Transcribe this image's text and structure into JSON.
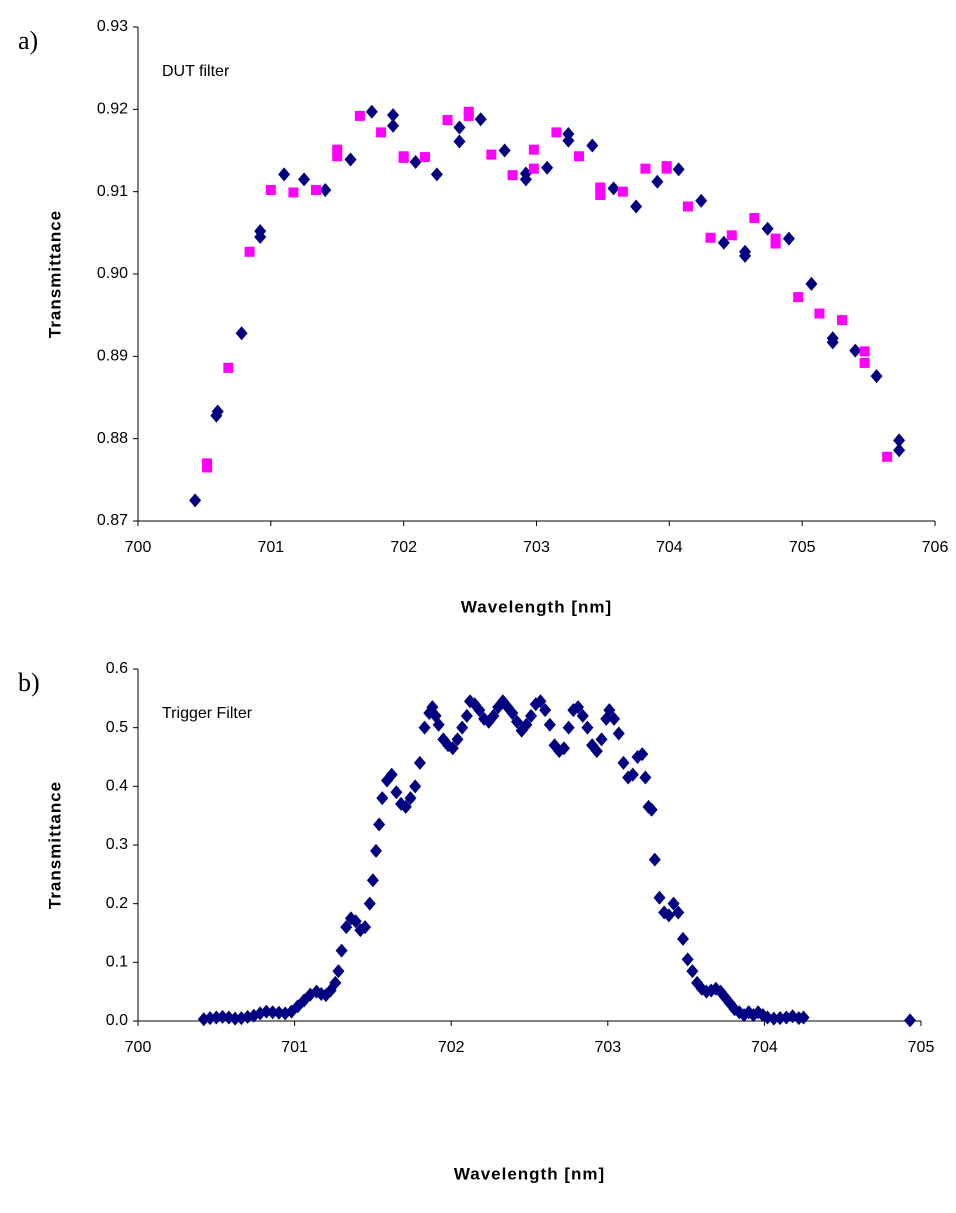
{
  "chart_data": [
    {
      "type": "scatter",
      "panel_label": "a)",
      "annotation": "DUT filter",
      "x_label": "Wavelength [nm]",
      "y_label": "Transmittance",
      "xlim": [
        700,
        706
      ],
      "xticks": [
        700,
        701,
        702,
        703,
        704,
        705,
        706
      ],
      "ylim": [
        0.87,
        0.93
      ],
      "yticks": [
        0.87,
        0.88,
        0.89,
        {
          "value": 0.9,
          "label": "0.90"
        },
        0.91,
        0.92,
        0.93
      ],
      "series": [
        {
          "color": "#000080",
          "marker": "diamond",
          "x": [
            700.43,
            700.59,
            700.6,
            700.78,
            700.92,
            700.92,
            701.1,
            701.25,
            701.41,
            701.6,
            701.76,
            701.92,
            701.92,
            702.09,
            702.25,
            702.42,
            702.42,
            702.58,
            702.76,
            702.92,
            702.92,
            703.08,
            703.24,
            703.24,
            703.42,
            703.58,
            703.75,
            703.91,
            704.07,
            704.24,
            704.41,
            704.57,
            704.57,
            704.74,
            704.9,
            705.07,
            705.23,
            705.23,
            705.4,
            705.56,
            705.73,
            705.73
          ],
          "values": [
            0.8725,
            0.8828,
            0.8833,
            0.8928,
            0.9045,
            0.9052,
            0.9121,
            0.9115,
            0.9102,
            0.9139,
            0.9197,
            0.9193,
            0.918,
            0.9136,
            0.9121,
            0.9161,
            0.9178,
            0.9188,
            0.915,
            0.9115,
            0.9122,
            0.9129,
            0.917,
            0.9162,
            0.9156,
            0.9104,
            0.9082,
            0.9112,
            0.9127,
            0.9089,
            0.9038,
            0.9022,
            0.9027,
            0.9055,
            0.9043,
            0.8988,
            0.8917,
            0.8922,
            0.8907,
            0.8876,
            0.8786,
            0.8798
          ]
        },
        {
          "color": "#ff00ff",
          "marker": "square",
          "x": [
            700.52,
            700.52,
            700.68,
            700.84,
            701.0,
            701.17,
            701.34,
            701.5,
            701.5,
            701.67,
            701.83,
            702.0,
            702.0,
            702.16,
            702.33,
            702.49,
            702.49,
            702.66,
            702.82,
            702.98,
            702.98,
            703.15,
            703.32,
            703.48,
            703.48,
            703.65,
            703.82,
            703.98,
            703.98,
            704.14,
            704.31,
            704.47,
            704.64,
            704.8,
            704.8,
            704.97,
            705.13,
            705.3,
            705.47,
            705.47,
            705.64
          ],
          "values": [
            0.8765,
            0.877,
            0.8886,
            0.9027,
            0.9102,
            0.9099,
            0.9102,
            0.9143,
            0.9151,
            0.9192,
            0.9172,
            0.9141,
            0.9143,
            0.9142,
            0.9187,
            0.9192,
            0.9197,
            0.9145,
            0.912,
            0.9128,
            0.9151,
            0.9172,
            0.9143,
            0.9096,
            0.9105,
            0.91,
            0.9128,
            0.9128,
            0.9131,
            0.9082,
            0.9044,
            0.9047,
            0.9068,
            0.9037,
            0.9043,
            0.8972,
            0.8952,
            0.8944,
            0.8892,
            0.8906,
            0.8778
          ]
        }
      ]
    },
    {
      "type": "scatter",
      "panel_label": "b)",
      "annotation": "Trigger Filter",
      "x_label": "Wavelength [nm]",
      "y_label": "Transmittance",
      "xlim": [
        700,
        705
      ],
      "xticks": [
        700,
        701,
        702,
        703,
        704,
        705
      ],
      "ylim": [
        0,
        0.6
      ],
      "yticks": [
        {
          "value": 0,
          "label": "0.0"
        },
        0.1,
        0.2,
        0.3,
        0.4,
        0.5,
        0.6
      ],
      "series": [
        {
          "color": "#000080",
          "marker": "diamond",
          "x": [
            700.42,
            700.46,
            700.5,
            700.54,
            700.58,
            700.62,
            700.66,
            700.7,
            700.74,
            700.78,
            700.82,
            700.86,
            700.9,
            700.94,
            700.98,
            701.02,
            701.06,
            701.1,
            701.14,
            701.17,
            701.2,
            701.23,
            701.26,
            701.28,
            701.3,
            701.33,
            701.36,
            701.39,
            701.42,
            701.45,
            701.48,
            701.5,
            701.52,
            701.54,
            701.56,
            701.59,
            701.62,
            701.65,
            701.68,
            701.71,
            701.74,
            701.77,
            701.8,
            701.83,
            701.86,
            701.88,
            701.9,
            701.92,
            701.95,
            701.98,
            702.01,
            702.04,
            702.07,
            702.1,
            702.12,
            702.15,
            702.18,
            702.21,
            702.24,
            702.27,
            702.3,
            702.33,
            702.36,
            702.39,
            702.42,
            702.45,
            702.48,
            702.51,
            702.54,
            702.57,
            702.6,
            702.63,
            702.66,
            702.69,
            702.72,
            702.75,
            702.78,
            702.81,
            702.84,
            702.87,
            702.9,
            702.93,
            702.96,
            702.99,
            703.01,
            703.04,
            703.07,
            703.1,
            703.13,
            703.16,
            703.19,
            703.22,
            703.24,
            703.26,
            703.28,
            703.3,
            703.33,
            703.36,
            703.39,
            703.42,
            703.45,
            703.48,
            703.51,
            703.54,
            703.57,
            703.6,
            703.63,
            703.66,
            703.69,
            703.72,
            703.75,
            703.78,
            703.81,
            703.84,
            703.87,
            703.9,
            703.93,
            703.96,
            703.99,
            704.02,
            704.06,
            704.1,
            704.14,
            704.18,
            704.22,
            704.25,
            704.93
          ],
          "values": [
            0.003,
            0.005,
            0.006,
            0.007,
            0.006,
            0.004,
            0.005,
            0.007,
            0.009,
            0.013,
            0.016,
            0.015,
            0.014,
            0.013,
            0.016,
            0.025,
            0.035,
            0.045,
            0.05,
            0.046,
            0.044,
            0.052,
            0.065,
            0.085,
            0.12,
            0.16,
            0.175,
            0.17,
            0.155,
            0.16,
            0.2,
            0.24,
            0.29,
            0.335,
            0.38,
            0.41,
            0.42,
            0.39,
            0.37,
            0.365,
            0.38,
            0.4,
            0.44,
            0.5,
            0.525,
            0.535,
            0.52,
            0.505,
            0.48,
            0.47,
            0.465,
            0.48,
            0.5,
            0.52,
            0.545,
            0.54,
            0.53,
            0.515,
            0.51,
            0.52,
            0.535,
            0.545,
            0.535,
            0.525,
            0.51,
            0.495,
            0.505,
            0.52,
            0.54,
            0.545,
            0.53,
            0.505,
            0.47,
            0.46,
            0.465,
            0.5,
            0.53,
            0.535,
            0.52,
            0.5,
            0.47,
            0.46,
            0.48,
            0.515,
            0.53,
            0.515,
            0.49,
            0.44,
            0.415,
            0.42,
            0.45,
            0.455,
            0.415,
            0.365,
            0.36,
            0.275,
            0.21,
            0.185,
            0.18,
            0.2,
            0.185,
            0.14,
            0.105,
            0.085,
            0.065,
            0.055,
            0.05,
            0.052,
            0.055,
            0.05,
            0.04,
            0.03,
            0.02,
            0.015,
            0.01,
            0.015,
            0.01,
            0.015,
            0.01,
            0.006,
            0.004,
            0.005,
            0.006,
            0.008,
            0.005,
            0.006,
            0.001
          ]
        }
      ]
    }
  ]
}
